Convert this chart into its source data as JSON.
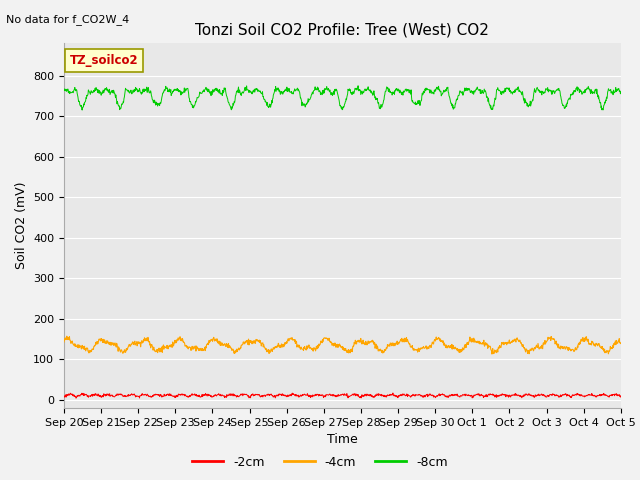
{
  "title": "Tonzi Soil CO2 Profile: Tree (West) CO2",
  "subtitle": "No data for f_CO2W_4",
  "ylabel": "Soil CO2 (mV)",
  "xlabel": "Time",
  "ylim": [
    -20,
    880
  ],
  "yticks": [
    0,
    100,
    200,
    300,
    400,
    500,
    600,
    700,
    800
  ],
  "n_days": 15,
  "xtick_labels": [
    "Sep 20",
    "Sep 21",
    "Sep 22",
    "Sep 23",
    "Sep 24",
    "Sep 25",
    "Sep 26",
    "Sep 27",
    "Sep 28",
    "Sep 29",
    "Sep 30",
    "Oct 1",
    "Oct 2",
    "Oct 3",
    "Oct 4",
    "Oct 5"
  ],
  "legend_entries": [
    "-2cm",
    "-4cm",
    "-8cm"
  ],
  "legend_colors": [
    "#ff0000",
    "#ffa500",
    "#00cc00"
  ],
  "line_neg2cm_mean": 8,
  "line_neg4cm_mean": 135,
  "line_neg8cm_mean": 762,
  "bg_color": "#e8e8e8",
  "grid_color": "#ffffff",
  "title_fontsize": 11,
  "axis_fontsize": 9,
  "tick_fontsize": 8,
  "legend_box_color": "#ffffcc",
  "legend_box_border": "#999900",
  "legend_box_label": "TZ_soilco2",
  "fig_bg_color": "#f2f2f2"
}
